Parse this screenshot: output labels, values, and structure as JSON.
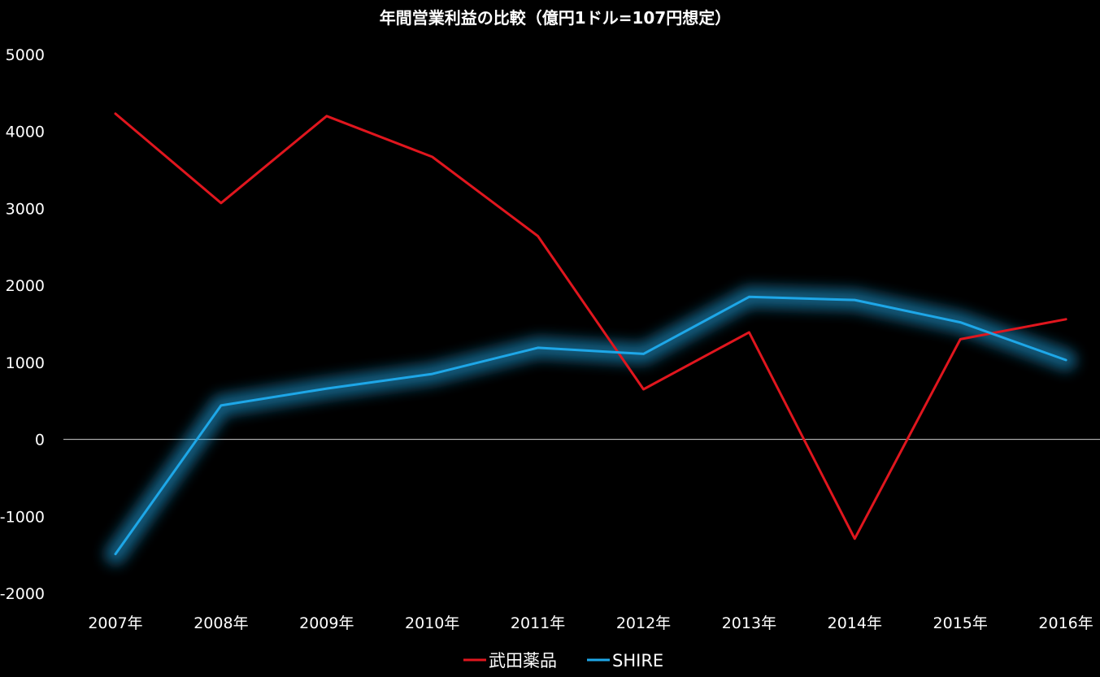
{
  "chart_data": {
    "type": "line",
    "title": "年間営業利益の比較（億円1ドル=107円想定）",
    "categories": [
      "2007年",
      "2008年",
      "2009年",
      "2010年",
      "2011年",
      "2012年",
      "2013年",
      "2014年",
      "2015年",
      "2016年"
    ],
    "series": [
      {
        "name": "武田薬品",
        "color": "#e0161e",
        "glow": false,
        "values": [
          4230,
          3070,
          4200,
          3670,
          2640,
          650,
          1390,
          -1290,
          1300,
          1560
        ]
      },
      {
        "name": "SHIRE",
        "color": "#1ea7e8",
        "glow": true,
        "values": [
          -1490,
          440,
          660,
          850,
          1190,
          1110,
          1850,
          1810,
          1520,
          1030
        ]
      }
    ],
    "y_ticks": [
      "5000",
      "4000",
      "3000",
      "2000",
      "1000",
      "0",
      "-1000",
      "-2000"
    ],
    "ylim": [
      -2000,
      5000
    ],
    "grid": false,
    "zero_line": true,
    "legend_position": "bottom"
  }
}
